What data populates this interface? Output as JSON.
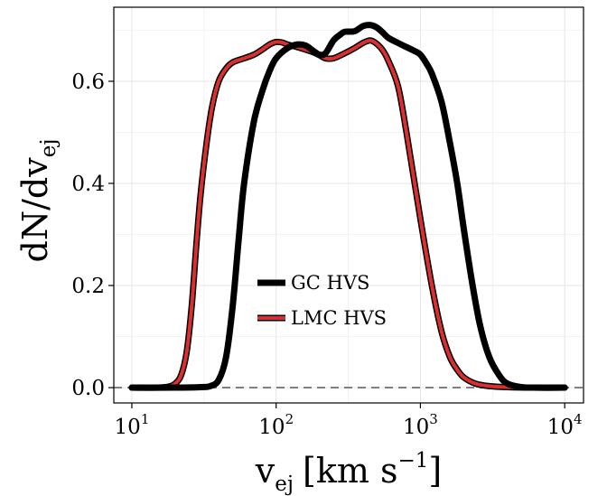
{
  "chart_data": {
    "type": "line",
    "title": "",
    "xlabel": {
      "base": "v",
      "sub": "ej",
      "units": "[km s",
      "sup": "−1",
      "close": "]"
    },
    "ylabel": {
      "base": "dN/dv",
      "sub": "ej"
    },
    "xscale": "log",
    "xlim": [
      7.5,
      13500
    ],
    "ylim": [
      -0.03,
      0.745
    ],
    "x_ticks": [
      {
        "value": 10,
        "base": "10",
        "exp": "1"
      },
      {
        "value": 100,
        "base": "10",
        "exp": "2"
      },
      {
        "value": 1000,
        "base": "10",
        "exp": "3"
      },
      {
        "value": 10000,
        "base": "10",
        "exp": "4"
      }
    ],
    "y_ticks": [
      {
        "value": 0.0,
        "label": "0.0"
      },
      {
        "value": 0.2,
        "label": "0.2"
      },
      {
        "value": 0.4,
        "label": "0.4"
      },
      {
        "value": 0.6,
        "label": "0.6"
      }
    ],
    "grid": true,
    "legend_position": "center",
    "reference_line": {
      "y": 0.0,
      "style": "dashed",
      "color": "#808080"
    },
    "series": [
      {
        "name": "GC HVS",
        "color": "#000000",
        "style": "thick",
        "x": [
          10,
          20,
          30,
          35,
          40,
          45,
          50,
          55,
          60,
          70,
          80,
          90,
          100,
          120,
          140,
          160,
          180,
          200,
          220,
          250,
          280,
          300,
          350,
          400,
          450,
          500,
          550,
          600,
          700,
          800,
          900,
          1000,
          1100,
          1200,
          1400,
          1600,
          1800,
          2000,
          2300,
          2600,
          3000,
          3500,
          4000,
          5000,
          6000,
          10000
        ],
        "y": [
          0,
          0,
          0.001,
          0.003,
          0.015,
          0.06,
          0.16,
          0.29,
          0.4,
          0.52,
          0.58,
          0.62,
          0.645,
          0.665,
          0.672,
          0.67,
          0.66,
          0.652,
          0.655,
          0.68,
          0.692,
          0.697,
          0.698,
          0.708,
          0.71,
          0.705,
          0.695,
          0.685,
          0.675,
          0.667,
          0.66,
          0.652,
          0.635,
          0.615,
          0.56,
          0.48,
          0.4,
          0.31,
          0.2,
          0.12,
          0.06,
          0.025,
          0.008,
          0.001,
          0,
          0
        ]
      },
      {
        "name": "LMC HVS",
        "color": "#d92f2f",
        "style": "outlined",
        "x": [
          10,
          15,
          18,
          20,
          22,
          24,
          26,
          28,
          30,
          33,
          36,
          40,
          45,
          50,
          60,
          70,
          80,
          90,
          100,
          110,
          120,
          140,
          160,
          180,
          200,
          220,
          250,
          300,
          350,
          400,
          450,
          500,
          550,
          600,
          700,
          800,
          1000,
          1200,
          1400,
          1600,
          1800,
          2000,
          2400,
          3000,
          4000,
          6000,
          10000
        ],
        "y": [
          0,
          0,
          0.002,
          0.008,
          0.025,
          0.07,
          0.16,
          0.28,
          0.38,
          0.48,
          0.55,
          0.6,
          0.625,
          0.637,
          0.645,
          0.652,
          0.662,
          0.672,
          0.677,
          0.676,
          0.672,
          0.667,
          0.662,
          0.657,
          0.651,
          0.645,
          0.645,
          0.655,
          0.665,
          0.675,
          0.68,
          0.673,
          0.66,
          0.64,
          0.59,
          0.5,
          0.33,
          0.2,
          0.11,
          0.06,
          0.035,
          0.02,
          0.008,
          0.003,
          0.001,
          0,
          0
        ]
      }
    ]
  }
}
